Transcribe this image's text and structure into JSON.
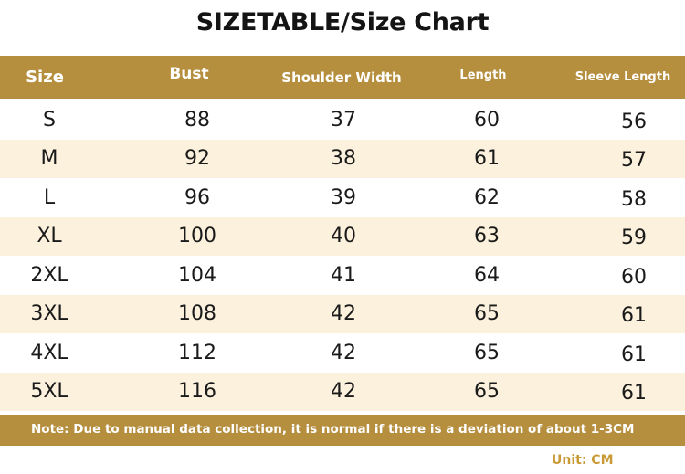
{
  "title": "SIZETABLE/Size Chart",
  "columns": [
    "Size",
    "Bust",
    "Shoulder Width",
    "Length",
    "Sleeve Length"
  ],
  "rows": [
    [
      "S",
      "88",
      "37",
      "60",
      "56"
    ],
    [
      "M",
      "92",
      "38",
      "61",
      "57"
    ],
    [
      "L",
      "96",
      "39",
      "62",
      "58"
    ],
    [
      "XL",
      "100",
      "40",
      "63",
      "59"
    ],
    [
      "2XL",
      "104",
      "41",
      "64",
      "60"
    ],
    [
      "3XL",
      "108",
      "42",
      "65",
      "61"
    ],
    [
      "4XL",
      "112",
      "42",
      "65",
      "61"
    ],
    [
      "5XL",
      "116",
      "42",
      "65",
      "61"
    ]
  ],
  "note": "Note: Due to manual data collection, it is normal if there is a deviation of about 1-3CM",
  "unit": "Unit: CM",
  "colors": {
    "header_background": "#b58e3e",
    "alternate_row": "#fcf1dc",
    "unit_text": "#c99a35"
  }
}
